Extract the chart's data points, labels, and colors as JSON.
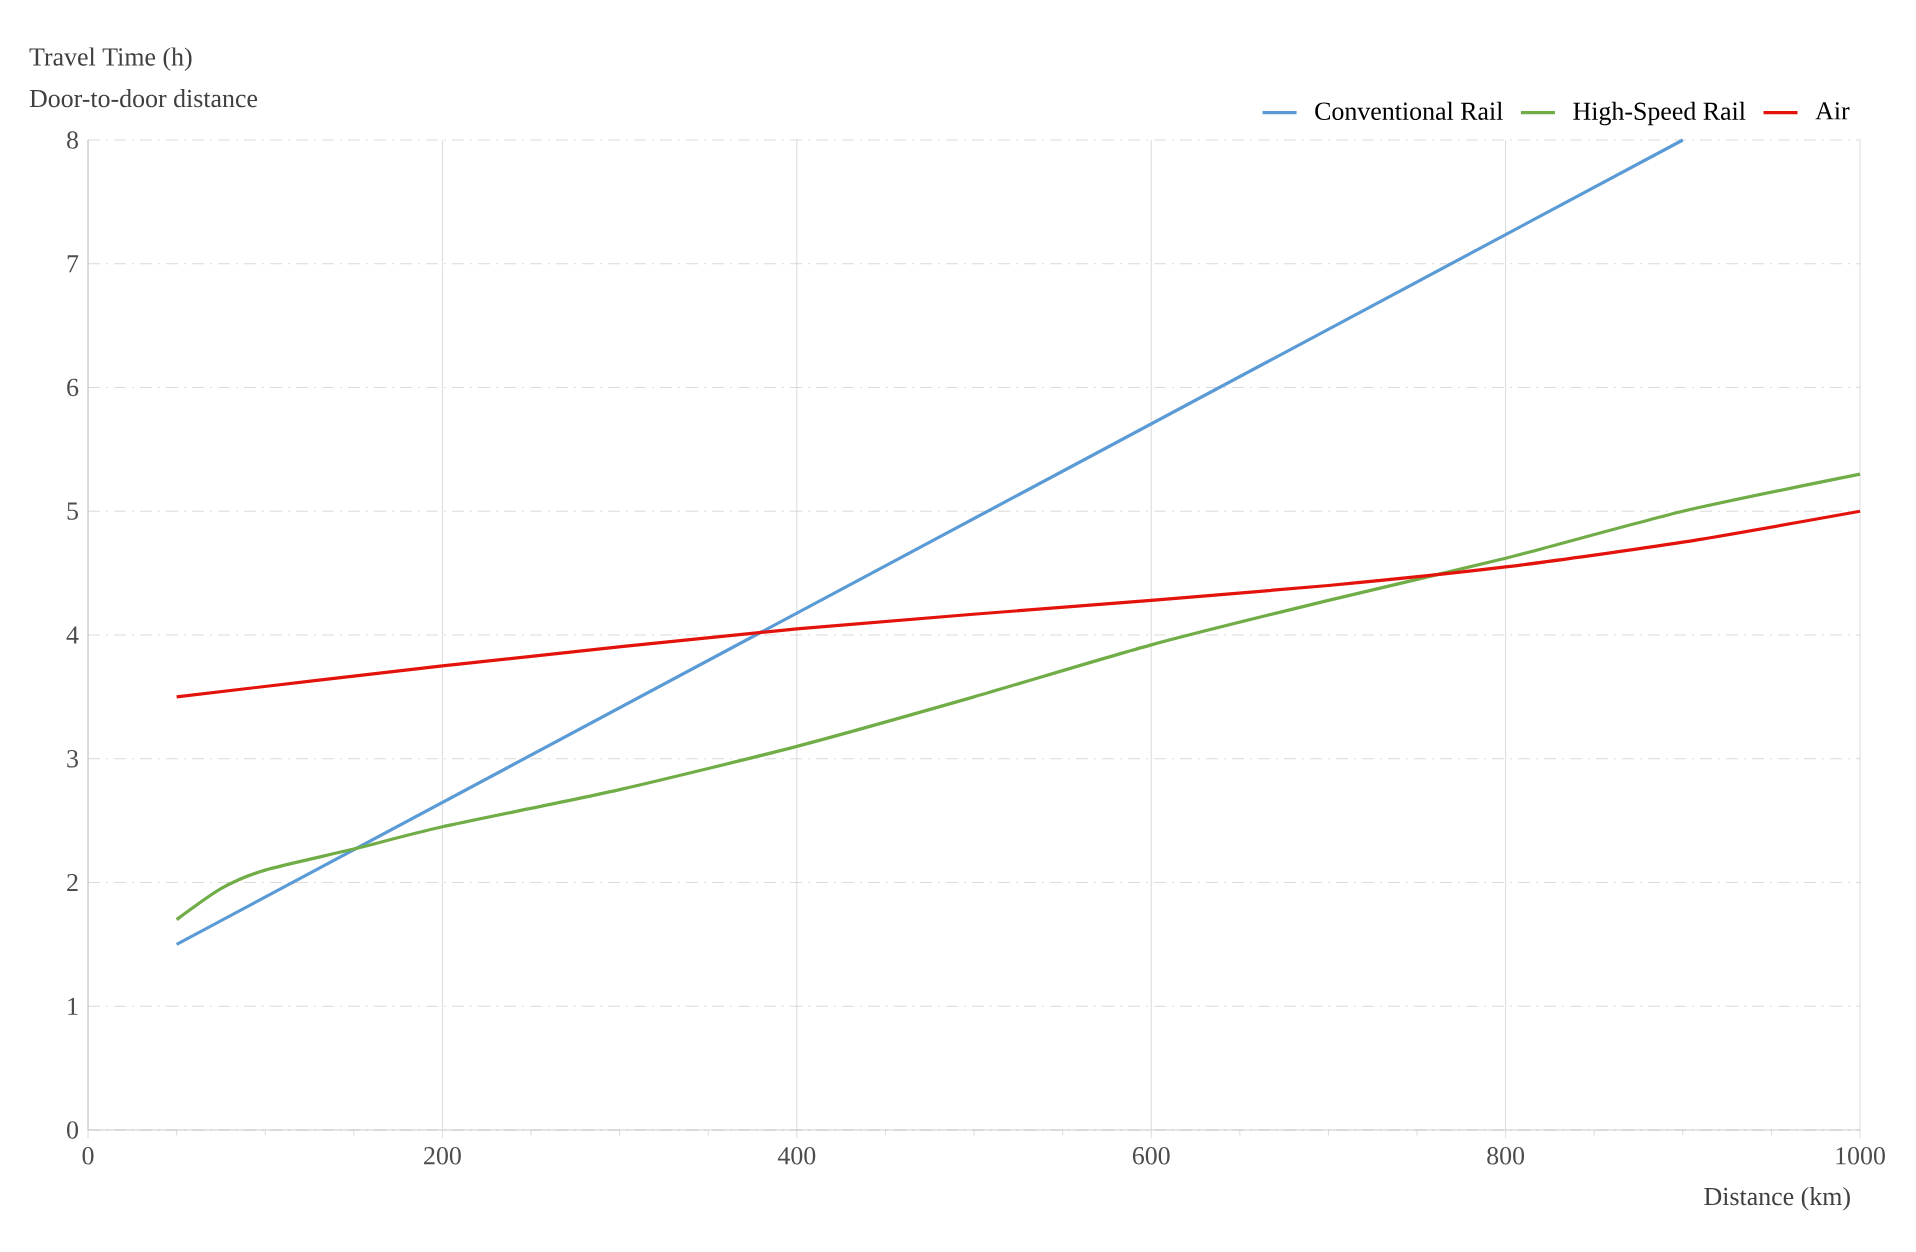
{
  "chart_data": {
    "type": "line",
    "ylabel": "Travel Time (h)",
    "xlabel": "Distance (km)",
    "annotations": [
      "Door-to-door distance"
    ],
    "xlim": [
      0,
      1000
    ],
    "xticks": [
      0,
      200,
      400,
      600,
      800,
      1000
    ],
    "ylim": [
      0,
      8
    ],
    "yticks": [
      0,
      1,
      2,
      3,
      4,
      5,
      6,
      7,
      8
    ],
    "grid": true,
    "legend": "top right",
    "marker": "none",
    "line_style": "solid",
    "series": [
      {
        "name": "Conventional Rail",
        "color": "#5b9bd5",
        "x": [
          50,
          900
        ],
        "values": [
          1.5,
          8.0
        ]
      },
      {
        "name": "High-Speed Rail",
        "color": "#70ad47",
        "x": [
          50,
          75,
          100,
          150,
          200,
          300,
          400,
          500,
          600,
          700,
          800,
          900,
          1000
        ],
        "values": [
          1.7,
          1.95,
          2.1,
          2.27,
          2.45,
          2.75,
          3.1,
          3.5,
          3.92,
          4.28,
          4.62,
          5.0,
          5.3
        ]
      },
      {
        "name": "Air",
        "color": "#e3120b",
        "x": [
          50,
          200,
          400,
          600,
          700,
          800,
          900,
          1000
        ],
        "values": [
          3.5,
          3.75,
          4.05,
          4.28,
          4.4,
          4.55,
          4.75,
          5.0
        ]
      }
    ]
  }
}
